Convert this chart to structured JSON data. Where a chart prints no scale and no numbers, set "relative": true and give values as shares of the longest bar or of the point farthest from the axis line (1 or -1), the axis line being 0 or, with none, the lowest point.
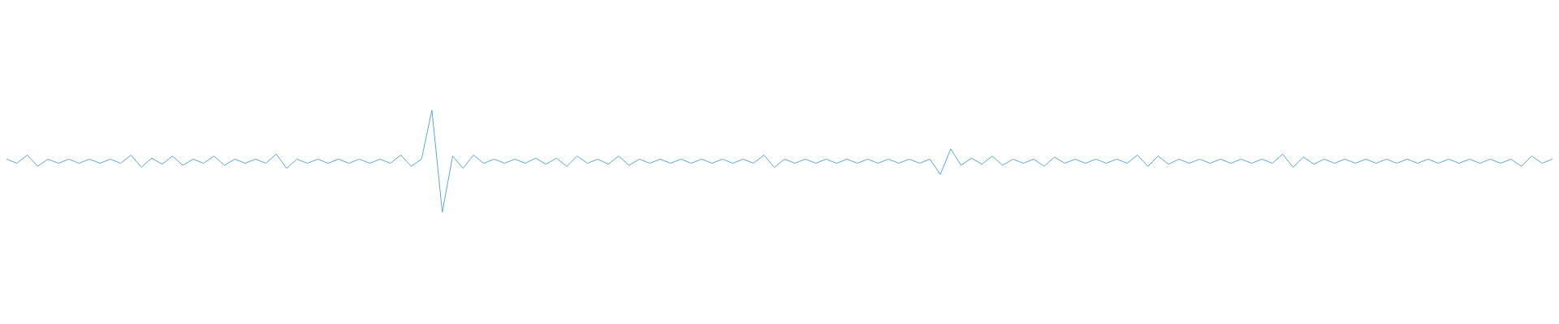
{
  "chart_data": {
    "type": "line",
    "relative": true,
    "categories": [
      null,
      null,
      null,
      null,
      null,
      null,
      null,
      null,
      null,
      null,
      null,
      null,
      null,
      null,
      null,
      null,
      null,
      null,
      null,
      null,
      null,
      null,
      null,
      null,
      null,
      null,
      null,
      null,
      null,
      null,
      null,
      null,
      null,
      null,
      null,
      null,
      null,
      null,
      null,
      null,
      null,
      null,
      null,
      null,
      null,
      null,
      null,
      null,
      null,
      null,
      null,
      null,
      null,
      null,
      null,
      null,
      null,
      null,
      null,
      null,
      null,
      null,
      null,
      null,
      null,
      null,
      null,
      null,
      null,
      null,
      null,
      null,
      null,
      null,
      null,
      null,
      null,
      null,
      null,
      null,
      null,
      null,
      null,
      null,
      null,
      null,
      null,
      null,
      null,
      null,
      null,
      null,
      null,
      null,
      null,
      null,
      null,
      null,
      null,
      null,
      null,
      null,
      null,
      null,
      null,
      null,
      null,
      null,
      null,
      null,
      null,
      null,
      null,
      null,
      null,
      null,
      null,
      null,
      null,
      null,
      null,
      null,
      null,
      null,
      null,
      null,
      null,
      null,
      null,
      null,
      null,
      null,
      null,
      null,
      null,
      null,
      null,
      null,
      null,
      null,
      null,
      null,
      null,
      null,
      null,
      null,
      null,
      null,
      null,
      null
    ],
    "series": [
      {
        "color": "#5aa9e0",
        "values": [
          0.52,
          0.48,
          0.56,
          0.45,
          0.52,
          0.48,
          0.52,
          0.48,
          0.52,
          0.48,
          0.52,
          0.48,
          0.56,
          0.44,
          0.53,
          0.47,
          0.55,
          0.46,
          0.52,
          0.48,
          0.55,
          0.46,
          0.52,
          0.48,
          0.52,
          0.48,
          0.57,
          0.43,
          0.52,
          0.48,
          0.52,
          0.48,
          0.52,
          0.48,
          0.52,
          0.48,
          0.52,
          0.48,
          0.56,
          0.45,
          0.52,
          1.0,
          0,
          0.55,
          0.43,
          0.56,
          0.48,
          0.52,
          0.48,
          0.52,
          0.48,
          0.53,
          0.47,
          0.53,
          0.45,
          0.55,
          0.48,
          0.52,
          0.47,
          0.55,
          0.46,
          0.52,
          0.48,
          0.52,
          0.48,
          0.52,
          0.48,
          0.52,
          0.48,
          0.52,
          0.48,
          0.52,
          0.48,
          0.56,
          0.44,
          0.52,
          0.48,
          0.52,
          0.48,
          0.52,
          0.48,
          0.52,
          0.48,
          0.52,
          0.48,
          0.52,
          0.48,
          0.52,
          0.48,
          0.52,
          0.37,
          0.62,
          0.46,
          0.53,
          0.47,
          0.55,
          0.46,
          0.52,
          0.48,
          0.52,
          0.45,
          0.54,
          0.48,
          0.52,
          0.48,
          0.52,
          0.48,
          0.52,
          0.48,
          0.56,
          0.45,
          0.55,
          0.47,
          0.52,
          0.48,
          0.52,
          0.48,
          0.52,
          0.48,
          0.52,
          0.48,
          0.52,
          0.48,
          0.57,
          0.44,
          0.54,
          0.47,
          0.52,
          0.48,
          0.52,
          0.48,
          0.52,
          0.48,
          0.52,
          0.48,
          0.52,
          0.48,
          0.52,
          0.48,
          0.52,
          0.48,
          0.52,
          0.48,
          0.52,
          0.48,
          0.52,
          0.45,
          0.55,
          0.48,
          0.52
        ]
      }
    ]
  }
}
